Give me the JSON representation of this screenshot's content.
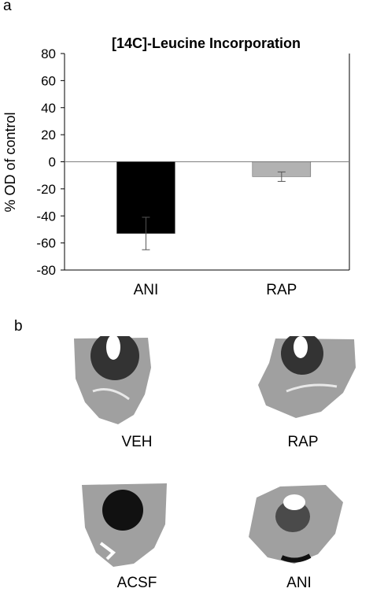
{
  "panels": {
    "a": "a",
    "b": "b"
  },
  "chart_data": {
    "type": "bar",
    "title": "[14C]-Leucine Incorporation",
    "ylabel": "% OD of control",
    "xlabel": "",
    "ylim": [
      -80,
      80
    ],
    "yticks": [
      80,
      60,
      40,
      20,
      0,
      -20,
      -40,
      -60,
      -80
    ],
    "categories": [
      "ANI",
      "RAP"
    ],
    "values": [
      -53,
      -11
    ],
    "errors": [
      12,
      3.5
    ],
    "colors": [
      "#000000",
      "#b2b2b2"
    ],
    "grid": false
  },
  "images": [
    {
      "label": "VEH",
      "icon": "brain-slice-autoradiograph"
    },
    {
      "label": "RAP",
      "icon": "brain-slice-autoradiograph"
    },
    {
      "label": "ACSF",
      "icon": "brain-slice-autoradiograph"
    },
    {
      "label": "ANI",
      "icon": "brain-slice-autoradiograph"
    }
  ]
}
